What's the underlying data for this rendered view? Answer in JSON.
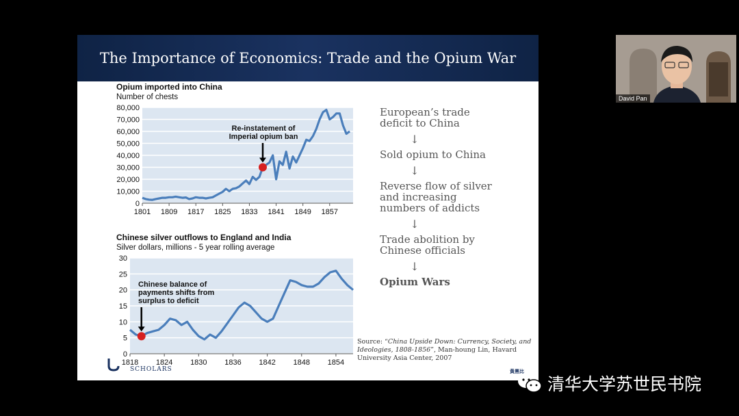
{
  "slide": {
    "title": "The Importance of Economics: Trade and the Opium War",
    "flow_steps": [
      "European’s trade deficit to China",
      "Sold opium to China",
      "Reverse flow of silver and increasing numbers of addicts",
      "Trade abolition by Chinese officials",
      "Opium Wars"
    ],
    "arrow_glyph": "↓",
    "source": {
      "prefix": "Source: “",
      "title": "China Upside Down: Currency, Society, and Ideologies, 1808-1856",
      "suffix": "”, Man-houng Lin, Havard University Asia Center, 2007"
    },
    "logo_text": "SCHOLARS",
    "corner_mark": "黄黑比"
  },
  "chart_data": [
    {
      "type": "line",
      "title": "Opium imported into China",
      "ylabel": "Number of chests",
      "ylim": [
        0,
        80000
      ],
      "yticks": [
        0,
        10000,
        20000,
        30000,
        40000,
        50000,
        60000,
        70000,
        80000
      ],
      "ytick_labels": [
        "0",
        "10,000",
        "20,000",
        "30,000",
        "40,000",
        "50,000",
        "60,000",
        "70,000",
        "80,000"
      ],
      "xlim": [
        1801,
        1864
      ],
      "xticks": [
        1801,
        1809,
        1817,
        1825,
        1833,
        1841,
        1849,
        1857
      ],
      "ytick_grid": true,
      "annotation": {
        "text": [
          "Re-instatement of",
          "Imperial opium ban"
        ],
        "x": 1837,
        "y": 30000
      },
      "x": [
        1801,
        1802,
        1803,
        1804,
        1805,
        1806,
        1807,
        1808,
        1809,
        1810,
        1811,
        1812,
        1813,
        1814,
        1815,
        1816,
        1817,
        1818,
        1819,
        1820,
        1821,
        1822,
        1823,
        1824,
        1825,
        1826,
        1827,
        1828,
        1829,
        1830,
        1831,
        1832,
        1833,
        1834,
        1835,
        1836,
        1837,
        1838,
        1839,
        1840,
        1841,
        1842,
        1843,
        1844,
        1845,
        1846,
        1847,
        1848,
        1849,
        1850,
        1851,
        1852,
        1853,
        1854,
        1855,
        1856,
        1857,
        1858,
        1859,
        1860,
        1861,
        1862,
        1863
      ],
      "values": [
        4500,
        3500,
        3000,
        2800,
        3500,
        4000,
        4500,
        4500,
        5000,
        5000,
        5500,
        5000,
        4500,
        4800,
        3500,
        4000,
        5000,
        4500,
        4500,
        4000,
        4500,
        5000,
        6500,
        8000,
        9500,
        12000,
        10000,
        12000,
        12500,
        14000,
        16500,
        19000,
        16000,
        22000,
        19500,
        22000,
        30000,
        32000,
        34000,
        40000,
        20000,
        35000,
        32000,
        43000,
        29000,
        39000,
        34000,
        40000,
        46000,
        53000,
        52000,
        56000,
        62000,
        70000,
        76000,
        78000,
        70000,
        72000,
        75000,
        75000,
        65000,
        58000,
        60000
      ]
    },
    {
      "type": "line",
      "title": "Chinese silver outflows to England and India",
      "ylabel": "Silver dollars, millions - 5 year rolling average",
      "ylim": [
        0,
        30
      ],
      "yticks": [
        0,
        5,
        10,
        15,
        20,
        25,
        30
      ],
      "xlim": [
        1818,
        1857
      ],
      "xticks": [
        1818,
        1824,
        1830,
        1836,
        1842,
        1848,
        1854
      ],
      "ytick_grid": true,
      "annotation": {
        "text": [
          "Chinese balance of",
          "payments shifts from",
          "surplus to deficit"
        ],
        "x": 1820,
        "y": 5.5
      },
      "x": [
        1818,
        1819,
        1820,
        1821,
        1822,
        1823,
        1824,
        1825,
        1826,
        1827,
        1828,
        1829,
        1830,
        1831,
        1832,
        1833,
        1834,
        1835,
        1836,
        1837,
        1838,
        1839,
        1840,
        1841,
        1842,
        1843,
        1844,
        1845,
        1846,
        1847,
        1848,
        1849,
        1850,
        1851,
        1852,
        1853,
        1854,
        1855,
        1856,
        1857
      ],
      "values": [
        7.5,
        6,
        5.5,
        6.5,
        7,
        7.5,
        9,
        11,
        10.5,
        9,
        10,
        7.5,
        5.5,
        4.5,
        6,
        5,
        7,
        9.5,
        12,
        14.5,
        16,
        15,
        13,
        11,
        10,
        11,
        15,
        19,
        23,
        22.5,
        21.5,
        21,
        21,
        22,
        24,
        25.5,
        26,
        23.5,
        21.5,
        20
      ]
    }
  ],
  "video": {
    "name": "David Pan"
  },
  "watermark": {
    "text": "清华大学苏世民书院",
    "icon": "wechat-icon"
  }
}
